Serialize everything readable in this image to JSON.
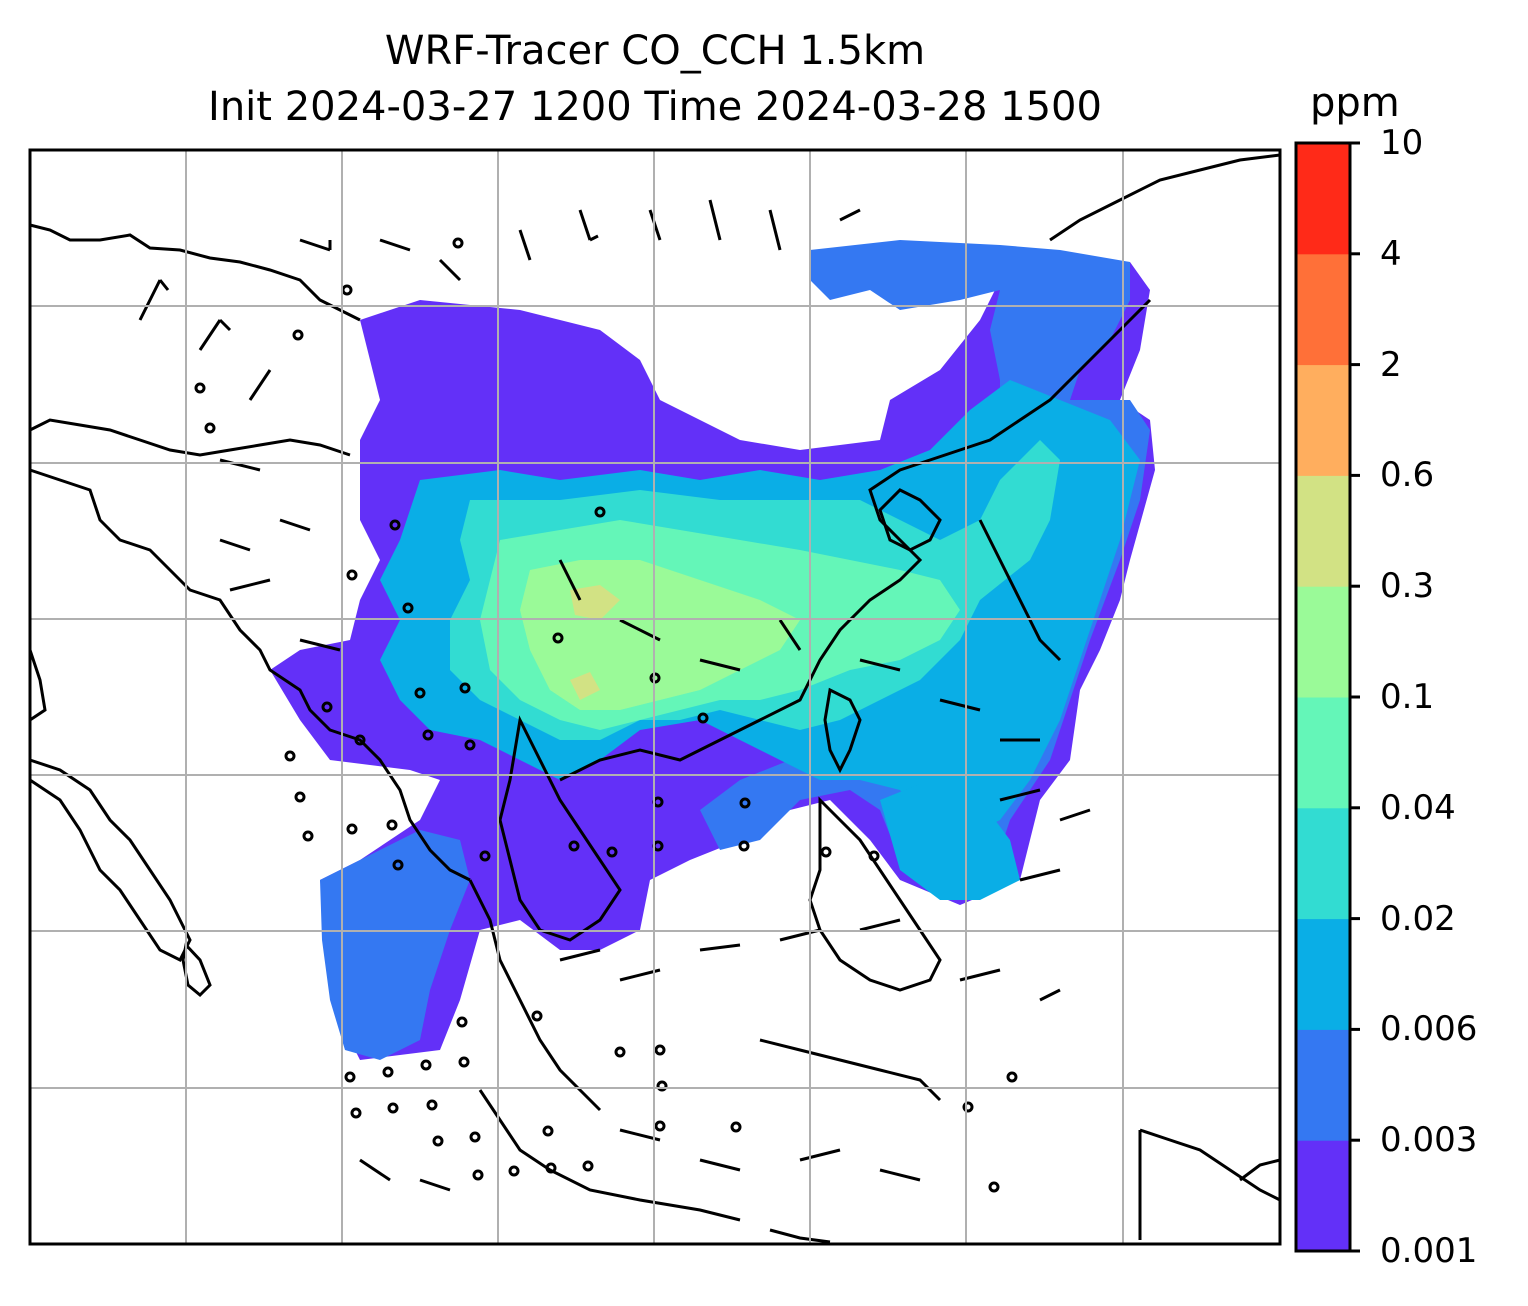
{
  "title_line1": "WRF-Tracer CO_CCH 1.5km",
  "title_line2": "Init 2024-03-27 1200 Time 2024-03-28 1500",
  "colorbar": {
    "unit": "ppm",
    "levels": [
      "0.001",
      "0.003",
      "0.006",
      "0.02",
      "0.04",
      "0.1",
      "0.3",
      "0.6",
      "2",
      "4",
      "10"
    ],
    "colors": [
      "#6330f8",
      "#3478f2",
      "#0aaee6",
      "#32dcd2",
      "#64f6b8",
      "#9afa98",
      "#d2e284",
      "#ffae5e",
      "#ff7038",
      "#ff2a18"
    ]
  },
  "colors": {
    "grid": "#b0b0b0",
    "coastline": "#000000"
  }
}
